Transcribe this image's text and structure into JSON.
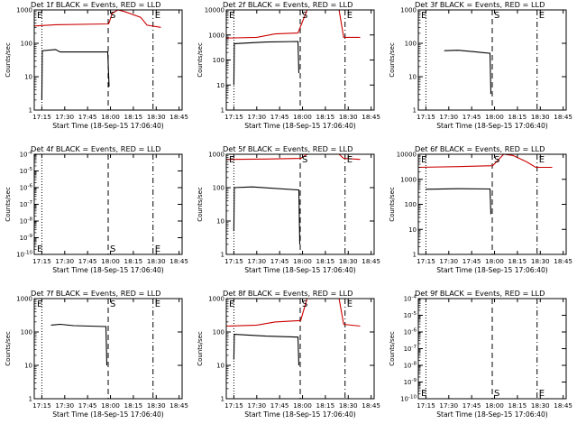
{
  "chart_data": [
    {
      "type": "line",
      "title": "Det 1f BLACK = Events, RED = LLD",
      "xlabel": "Start Time (18-Sep-15 17:06:40)",
      "ylabel": "Counts/sec",
      "xlim": [
        17.167,
        18.783
      ],
      "ylim": [
        1,
        1000
      ],
      "yscale": "log",
      "x_ticks": [
        "17:15",
        "17:30",
        "17:45",
        "18:00",
        "18:15",
        "18:30",
        "18:45"
      ],
      "y_ticks": [
        "1",
        "10",
        "100",
        "1000"
      ],
      "markers": [
        "E",
        "S",
        "E"
      ],
      "series": [
        {
          "color": "#000000",
          "points": [
            [
              17.25,
              2
            ],
            [
              17.255,
              60
            ],
            [
              17.4,
              65
            ],
            [
              17.45,
              55
            ],
            [
              17.97,
              55
            ],
            [
              17.985,
              5
            ]
          ]
        },
        {
          "color": "#cc0000",
          "points": [
            [
              17.17,
              330
            ],
            [
              17.4,
              360
            ],
            [
              17.98,
              380
            ],
            [
              18.02,
              800
            ],
            [
              18.08,
              1000
            ],
            [
              18.15,
              900
            ],
            [
              18.33,
              600
            ],
            [
              18.4,
              350
            ],
            [
              18.55,
              300
            ]
          ]
        }
      ]
    },
    {
      "type": "line",
      "title": "Det 2f BLACK = Events, RED = LLD",
      "xlabel": "Start Time (18-Sep-15 17:06:40)",
      "ylabel": "Counts/sec",
      "xlim": [
        17.167,
        18.783
      ],
      "ylim": [
        1,
        10000
      ],
      "yscale": "log",
      "x_ticks": [
        "17:15",
        "17:30",
        "17:45",
        "18:00",
        "18:15",
        "18:30",
        "18:45"
      ],
      "y_ticks": [
        "1",
        "10",
        "100",
        "1000",
        "10000"
      ],
      "markers": [
        "E",
        "S",
        "E"
      ],
      "series": [
        {
          "color": "#000000",
          "points": [
            [
              17.25,
              10
            ],
            [
              17.255,
              450
            ],
            [
              17.6,
              520
            ],
            [
              17.95,
              550
            ],
            [
              17.96,
              30
            ]
          ]
        },
        {
          "color": "#cc0000",
          "points": [
            [
              17.17,
              750
            ],
            [
              17.5,
              800
            ],
            [
              17.7,
              1100
            ],
            [
              17.95,
              1200
            ],
            [
              18.05,
              10000
            ],
            [
              18.15,
              10000
            ],
            [
              18.4,
              10000
            ],
            [
              18.45,
              800
            ],
            [
              18.63,
              800
            ]
          ]
        }
      ]
    },
    {
      "type": "line",
      "title": "Det 3f BLACK = Events, RED = LLD",
      "xlabel": "Start Time (18-Sep-15 17:06:40)",
      "ylabel": "Counts/sec",
      "xlim": [
        17.167,
        18.783
      ],
      "ylim": [
        1,
        1000
      ],
      "yscale": "log",
      "x_ticks": [
        "17:15",
        "17:30",
        "17:45",
        "18:00",
        "18:15",
        "18:30",
        "18:45"
      ],
      "y_ticks": [
        "1",
        "10",
        "100",
        "1000"
      ],
      "markers": [
        "E",
        "S",
        "E"
      ],
      "series": [
        {
          "color": "#000000",
          "points": [
            [
              17.45,
              60
            ],
            [
              17.6,
              62
            ],
            [
              17.8,
              55
            ],
            [
              17.95,
              50
            ],
            [
              17.96,
              3
            ]
          ]
        }
      ]
    },
    {
      "type": "line",
      "title": "Det 4f BLACK = Events, RED = LLD",
      "xlabel": "Start Time (18-Sep-15 17:06:40)",
      "ylabel": "Counts/sec",
      "xlim": [
        17.167,
        18.783
      ],
      "ylim": [
        1e-10,
        0.0001
      ],
      "yscale": "log",
      "x_ticks": [
        "17:15",
        "17:30",
        "17:45",
        "18:00",
        "18:15",
        "18:30",
        "18:45"
      ],
      "y_ticks": [
        "10^-10",
        "10^-9",
        "10^-8",
        "10^-7",
        "10^-6",
        "10^-5",
        "10^-4"
      ],
      "markers": [
        "E",
        "S",
        "E"
      ],
      "series": []
    },
    {
      "type": "line",
      "title": "Det 5f BLACK = Events, RED = LLD",
      "xlabel": "Start Time (18-Sep-15 17:06:40)",
      "ylabel": "Counts/sec",
      "xlim": [
        17.167,
        18.783
      ],
      "ylim": [
        1,
        1000
      ],
      "yscale": "log",
      "x_ticks": [
        "17:15",
        "17:30",
        "17:45",
        "18:00",
        "18:15",
        "18:30",
        "18:45"
      ],
      "y_ticks": [
        "1",
        "10",
        "100",
        "1000"
      ],
      "markers": [
        "E",
        "S",
        "E"
      ],
      "series": [
        {
          "color": "#000000",
          "points": [
            [
              17.25,
              5
            ],
            [
              17.255,
              100
            ],
            [
              17.45,
              105
            ],
            [
              17.96,
              85
            ],
            [
              17.97,
              2
            ]
          ]
        },
        {
          "color": "#cc0000",
          "points": [
            [
              17.17,
              700
            ],
            [
              17.6,
              720
            ],
            [
              17.98,
              750
            ],
            [
              18.05,
              1000
            ],
            [
              18.15,
              1000
            ],
            [
              18.4,
              1000
            ],
            [
              18.45,
              750
            ],
            [
              18.63,
              700
            ]
          ]
        }
      ]
    },
    {
      "type": "line",
      "title": "Det 6f BLACK = Events, RED = LLD",
      "xlabel": "Start Time (18-Sep-15 17:06:40)",
      "ylabel": "Counts/sec",
      "xlim": [
        17.167,
        18.783
      ],
      "ylim": [
        1,
        10000
      ],
      "yscale": "log",
      "x_ticks": [
        "17:15",
        "17:30",
        "17:45",
        "18:00",
        "18:15",
        "18:30",
        "18:45"
      ],
      "y_ticks": [
        "1",
        "10",
        "100",
        "1000",
        "10000"
      ],
      "markers": [
        "E",
        "S",
        "E"
      ],
      "series": [
        {
          "color": "#000000",
          "points": [
            [
              17.25,
              400
            ],
            [
              17.6,
              420
            ],
            [
              17.95,
              410
            ],
            [
              17.96,
              40
            ]
          ]
        },
        {
          "color": "#cc0000",
          "points": [
            [
              17.17,
              3000
            ],
            [
              17.6,
              3200
            ],
            [
              17.98,
              3500
            ],
            [
              18.1,
              10000
            ],
            [
              18.2,
              9000
            ],
            [
              18.35,
              5000
            ],
            [
              18.45,
              3000
            ],
            [
              18.63,
              3000
            ]
          ]
        }
      ]
    },
    {
      "type": "line",
      "title": "Det 7f BLACK = Events, RED = LLD",
      "xlabel": "Start Time (18-Sep-15 17:06:40)",
      "ylabel": "Counts/sec",
      "xlim": [
        17.167,
        18.783
      ],
      "ylim": [
        1,
        1000
      ],
      "yscale": "log",
      "x_ticks": [
        "17:15",
        "17:30",
        "17:45",
        "18:00",
        "18:15",
        "18:30",
        "18:45"
      ],
      "y_ticks": [
        "1",
        "10",
        "100",
        "1000"
      ],
      "markers": [
        "E",
        "S",
        "E"
      ],
      "series": [
        {
          "color": "#000000",
          "points": [
            [
              17.35,
              160
            ],
            [
              17.45,
              170
            ],
            [
              17.6,
              155
            ],
            [
              17.95,
              145
            ],
            [
              17.96,
              10
            ]
          ]
        }
      ]
    },
    {
      "type": "line",
      "title": "Det 8f BLACK = Events, RED = LLD",
      "xlabel": "Start Time (18-Sep-15 17:06:40)",
      "ylabel": "Counts/sec",
      "xlim": [
        17.167,
        18.783
      ],
      "ylim": [
        1,
        1000
      ],
      "yscale": "log",
      "x_ticks": [
        "17:15",
        "17:30",
        "17:45",
        "18:00",
        "18:15",
        "18:30",
        "18:45"
      ],
      "y_ticks": [
        "1",
        "10",
        "100",
        "1000"
      ],
      "markers": [
        "E",
        "S",
        "E"
      ],
      "series": [
        {
          "color": "#000000",
          "points": [
            [
              17.25,
              15
            ],
            [
              17.255,
              85
            ],
            [
              17.6,
              75
            ],
            [
              17.95,
              70
            ],
            [
              17.96,
              10
            ]
          ]
        },
        {
          "color": "#cc0000",
          "points": [
            [
              17.17,
              150
            ],
            [
              17.5,
              160
            ],
            [
              17.7,
              200
            ],
            [
              17.98,
              220
            ],
            [
              18.05,
              1000
            ],
            [
              18.15,
              1000
            ],
            [
              18.4,
              1000
            ],
            [
              18.45,
              170
            ],
            [
              18.63,
              150
            ]
          ]
        }
      ]
    },
    {
      "type": "line",
      "title": "Det 9f BLACK = Events, RED = LLD",
      "xlabel": "Start Time (18-Sep-15 17:06:40)",
      "ylabel": "Counts/sec",
      "xlim": [
        17.167,
        18.783
      ],
      "ylim": [
        1e-10,
        0.0001
      ],
      "yscale": "log",
      "x_ticks": [
        "17:15",
        "17:30",
        "17:45",
        "18:00",
        "18:15",
        "18:30",
        "18:45"
      ],
      "y_ticks": [
        "10^-10",
        "10^-9",
        "10^-8",
        "10^-7",
        "10^-6",
        "10^-5",
        "10^-4"
      ],
      "markers": [
        "E",
        "S",
        "E"
      ],
      "series": []
    }
  ]
}
